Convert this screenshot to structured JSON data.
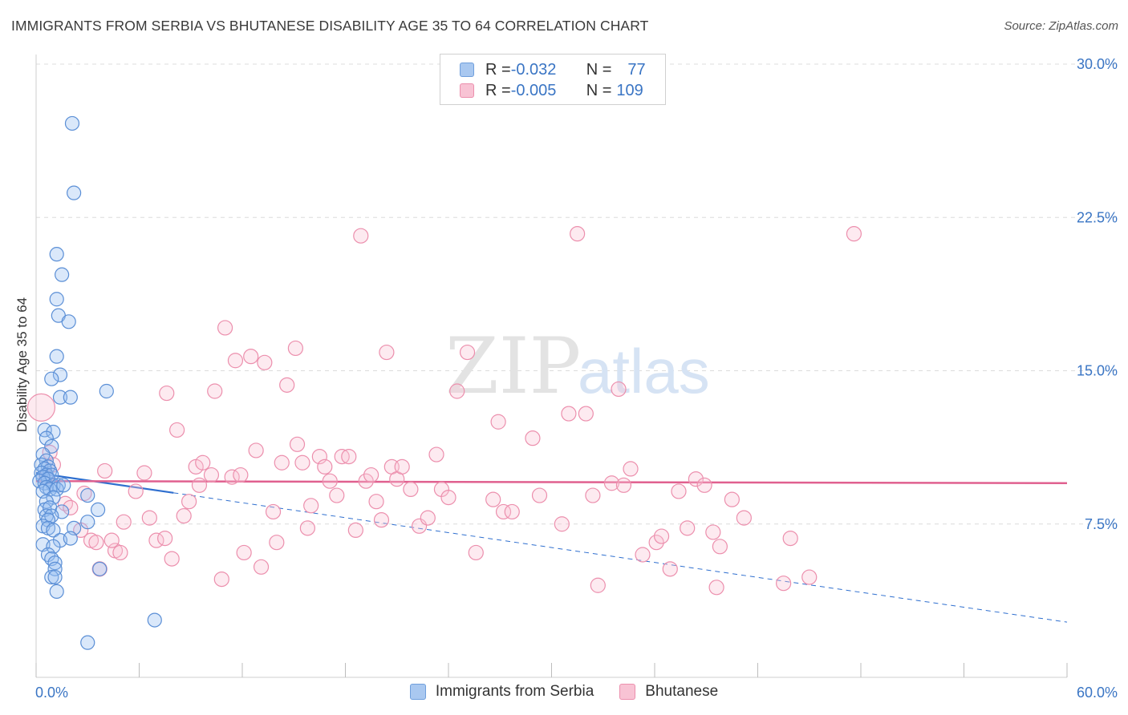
{
  "title": "IMMIGRANTS FROM SERBIA VS BHUTANESE DISABILITY AGE 35 TO 64 CORRELATION CHART",
  "source": "Source: ZipAtlas.com",
  "watermark": {
    "zip": "ZIP",
    "atlas": "atlas"
  },
  "legend": {
    "rows": [
      {
        "r_label": "R = ",
        "r_value": "-0.032",
        "n_label": "N = ",
        "n_value": "77",
        "color": "#a9c8f0",
        "border": "#6f9fdc"
      },
      {
        "r_label": "R = ",
        "r_value": "-0.005",
        "n_label": "N = ",
        "n_value": "109",
        "color": "#f8c3d4",
        "border": "#ec8fad"
      }
    ]
  },
  "bottom_legend": [
    {
      "label": "Immigrants from Serbia",
      "color": "#a9c8f0",
      "border": "#6f9fdc"
    },
    {
      "label": "Bhutanese",
      "color": "#f8c3d4",
      "border": "#ec8fad"
    }
  ],
  "colors": {
    "blue": "#5b8fd6",
    "blue_fill": "rgba(150,190,240,0.35)",
    "blue_line": "#2f6fcf",
    "pink": "#ec8fad",
    "pink_fill": "rgba(248,195,212,0.35)",
    "pink_line": "#e0608f",
    "grid": "#dcdcdc",
    "axis_text": "#3a75c4"
  },
  "chart_data": {
    "type": "scatter",
    "title": "IMMIGRANTS FROM SERBIA VS BHUTANESE DISABILITY AGE 35 TO 64 CORRELATION CHART",
    "xlabel": "",
    "ylabel": "Disability Age 35 to 64",
    "xlim": [
      0,
      60
    ],
    "ylim": [
      0,
      30
    ],
    "x_ticks": [
      {
        "value": 0,
        "label": "0.0%"
      },
      {
        "value": 60,
        "label": "60.0%"
      }
    ],
    "y_ticks": [
      {
        "value": 7.5,
        "label": "7.5%"
      },
      {
        "value": 15,
        "label": "15.0%"
      },
      {
        "value": 22.5,
        "label": "22.5%"
      },
      {
        "value": 30,
        "label": "30.0%"
      }
    ],
    "series": [
      {
        "name": "Immigrants from Serbia",
        "color": "blue",
        "R": -0.032,
        "N": 77,
        "trend": {
          "solid_x": [
            0,
            8
          ],
          "dashed_x": [
            8,
            60
          ],
          "y0": 10.0,
          "y60": 2.7
        },
        "points": [
          [
            2.1,
            27.1
          ],
          [
            2.2,
            23.7
          ],
          [
            1.2,
            20.7
          ],
          [
            1.5,
            19.7
          ],
          [
            1.2,
            18.5
          ],
          [
            1.3,
            17.7
          ],
          [
            1.9,
            17.4
          ],
          [
            1.2,
            15.7
          ],
          [
            1.4,
            14.8
          ],
          [
            0.9,
            14.6
          ],
          [
            1.4,
            13.7
          ],
          [
            2.0,
            13.7
          ],
          [
            4.1,
            14.0
          ],
          [
            0.5,
            12.1
          ],
          [
            1.0,
            12.0
          ],
          [
            0.6,
            11.7
          ],
          [
            0.9,
            11.3
          ],
          [
            0.4,
            10.9
          ],
          [
            0.6,
            10.6
          ],
          [
            0.3,
            10.4
          ],
          [
            0.7,
            10.3
          ],
          [
            0.5,
            10.2
          ],
          [
            0.8,
            10.1
          ],
          [
            0.3,
            10.0
          ],
          [
            0.6,
            9.9
          ],
          [
            0.9,
            9.9
          ],
          [
            0.4,
            9.8
          ],
          [
            0.7,
            9.7
          ],
          [
            0.2,
            9.6
          ],
          [
            0.5,
            9.5
          ],
          [
            1.0,
            9.4
          ],
          [
            1.3,
            9.4
          ],
          [
            0.6,
            9.3
          ],
          [
            0.8,
            9.2
          ],
          [
            1.2,
            9.2
          ],
          [
            1.6,
            9.4
          ],
          [
            0.4,
            9.1
          ],
          [
            1.0,
            8.8
          ],
          [
            3.0,
            8.9
          ],
          [
            0.6,
            8.6
          ],
          [
            0.5,
            8.2
          ],
          [
            0.8,
            8.3
          ],
          [
            1.5,
            8.1
          ],
          [
            3.6,
            8.2
          ],
          [
            0.6,
            7.9
          ],
          [
            0.9,
            7.9
          ],
          [
            0.7,
            7.7
          ],
          [
            3.0,
            7.6
          ],
          [
            0.4,
            7.4
          ],
          [
            0.7,
            7.3
          ],
          [
            1.0,
            7.2
          ],
          [
            2.2,
            7.3
          ],
          [
            1.4,
            6.7
          ],
          [
            2.0,
            6.8
          ],
          [
            0.4,
            6.5
          ],
          [
            1.0,
            6.4
          ],
          [
            0.7,
            6.0
          ],
          [
            0.9,
            5.8
          ],
          [
            1.1,
            5.6
          ],
          [
            3.7,
            5.3
          ],
          [
            1.1,
            5.3
          ],
          [
            0.9,
            4.9
          ],
          [
            1.1,
            4.9
          ],
          [
            1.2,
            4.2
          ],
          [
            6.9,
            2.8
          ],
          [
            3.0,
            1.7
          ]
        ]
      },
      {
        "name": "Bhutanese",
        "color": "pink",
        "R": -0.005,
        "N": 109,
        "trend": {
          "solid_x": [
            0,
            60
          ],
          "y0": 9.6,
          "y60": 9.5
        },
        "points": [
          [
            0.3,
            13.2
          ],
          [
            0.8,
            11.0
          ],
          [
            1.0,
            10.4
          ],
          [
            0.6,
            9.8
          ],
          [
            1.7,
            8.5
          ],
          [
            2.0,
            8.3
          ],
          [
            2.8,
            9.0
          ],
          [
            2.6,
            7.2
          ],
          [
            3.2,
            6.7
          ],
          [
            3.5,
            6.6
          ],
          [
            4.0,
            10.1
          ],
          [
            3.7,
            5.3
          ],
          [
            4.6,
            6.2
          ],
          [
            4.4,
            6.7
          ],
          [
            4.9,
            6.1
          ],
          [
            5.1,
            7.6
          ],
          [
            5.8,
            9.1
          ],
          [
            6.3,
            10.0
          ],
          [
            6.6,
            7.8
          ],
          [
            7.0,
            6.7
          ],
          [
            7.5,
            6.8
          ],
          [
            7.6,
            13.9
          ],
          [
            7.9,
            5.8
          ],
          [
            8.2,
            12.1
          ],
          [
            8.6,
            7.9
          ],
          [
            8.9,
            8.6
          ],
          [
            9.3,
            10.3
          ],
          [
            9.5,
            9.4
          ],
          [
            9.7,
            10.5
          ],
          [
            10.2,
            9.9
          ],
          [
            10.4,
            14.0
          ],
          [
            10.8,
            4.8
          ],
          [
            11.0,
            17.1
          ],
          [
            11.4,
            9.8
          ],
          [
            11.6,
            15.5
          ],
          [
            11.9,
            9.9
          ],
          [
            12.1,
            6.1
          ],
          [
            12.5,
            15.7
          ],
          [
            12.8,
            11.1
          ],
          [
            13.1,
            5.4
          ],
          [
            13.3,
            15.4
          ],
          [
            13.8,
            8.1
          ],
          [
            14.0,
            6.6
          ],
          [
            14.3,
            10.5
          ],
          [
            14.6,
            14.3
          ],
          [
            15.1,
            16.1
          ],
          [
            15.2,
            11.4
          ],
          [
            15.5,
            10.5
          ],
          [
            15.8,
            7.3
          ],
          [
            16.0,
            8.4
          ],
          [
            16.5,
            10.8
          ],
          [
            16.8,
            10.3
          ],
          [
            17.1,
            9.6
          ],
          [
            17.5,
            8.9
          ],
          [
            17.8,
            10.8
          ],
          [
            18.2,
            10.8
          ],
          [
            18.6,
            7.2
          ],
          [
            18.9,
            21.6
          ],
          [
            19.2,
            9.6
          ],
          [
            19.5,
            9.9
          ],
          [
            19.8,
            8.6
          ],
          [
            20.1,
            7.7
          ],
          [
            20.4,
            15.9
          ],
          [
            20.7,
            10.3
          ],
          [
            21.0,
            9.7
          ],
          [
            21.3,
            10.3
          ],
          [
            21.8,
            9.2
          ],
          [
            22.3,
            7.4
          ],
          [
            22.8,
            7.8
          ],
          [
            23.3,
            10.9
          ],
          [
            23.6,
            9.2
          ],
          [
            24.0,
            8.8
          ],
          [
            24.5,
            14.0
          ],
          [
            25.1,
            15.9
          ],
          [
            25.6,
            6.1
          ],
          [
            26.6,
            8.7
          ],
          [
            26.9,
            12.5
          ],
          [
            27.2,
            8.1
          ],
          [
            27.7,
            8.1
          ],
          [
            28.9,
            11.7
          ],
          [
            29.3,
            8.9
          ],
          [
            30.6,
            7.5
          ],
          [
            31.0,
            12.9
          ],
          [
            31.5,
            21.7
          ],
          [
            32.0,
            12.9
          ],
          [
            32.4,
            8.9
          ],
          [
            32.7,
            4.5
          ],
          [
            33.5,
            9.5
          ],
          [
            33.9,
            14.1
          ],
          [
            34.2,
            9.4
          ],
          [
            34.6,
            10.2
          ],
          [
            35.3,
            6.0
          ],
          [
            36.1,
            6.6
          ],
          [
            36.4,
            6.9
          ],
          [
            36.9,
            5.3
          ],
          [
            37.4,
            9.1
          ],
          [
            37.9,
            7.3
          ],
          [
            38.4,
            9.7
          ],
          [
            38.9,
            9.4
          ],
          [
            39.4,
            7.1
          ],
          [
            39.6,
            4.4
          ],
          [
            39.8,
            6.4
          ],
          [
            40.5,
            8.7
          ],
          [
            41.2,
            7.8
          ],
          [
            43.5,
            4.6
          ],
          [
            43.9,
            6.8
          ],
          [
            45.0,
            4.9
          ],
          [
            47.6,
            21.7
          ]
        ]
      }
    ]
  }
}
